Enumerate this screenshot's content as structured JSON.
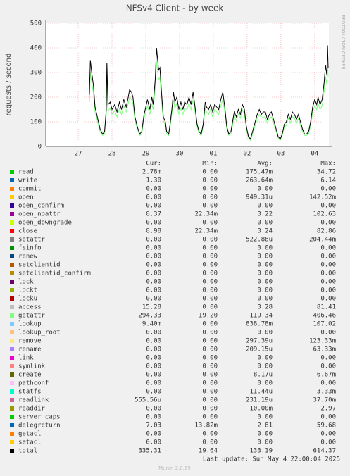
{
  "chart_data": {
    "type": "line",
    "title": "NFSv4 Client - by week",
    "y_label": "requests / second",
    "watermark": "RRDTOOL / TOBI OETIKER",
    "last_update": "Last update: Sun May  4 22:00:04 2025",
    "version": "Munin 2.0.69",
    "columns": [
      "Cur:",
      "Min:",
      "Avg:",
      "Max:"
    ],
    "ylim": [
      0,
      500
    ],
    "yticks": [
      0,
      100,
      200,
      300,
      400,
      500
    ],
    "xlim": [
      26.04,
      34.42
    ],
    "xticks": [
      27,
      28,
      29,
      30,
      {
        "value": 31,
        "label": "01"
      },
      {
        "value": 32,
        "label": "02"
      },
      {
        "value": 33,
        "label": "03"
      },
      {
        "value": 34,
        "label": "04"
      }
    ],
    "grid": true,
    "x": [
      27.33,
      27.36,
      27.4,
      27.45,
      27.5,
      27.55,
      27.6,
      27.65,
      27.72,
      27.78,
      27.83,
      27.85,
      27.88,
      27.95,
      28.0,
      28.08,
      28.15,
      28.22,
      28.28,
      28.35,
      28.42,
      28.48,
      28.52,
      28.58,
      28.62,
      28.68,
      28.75,
      28.82,
      28.88,
      28.95,
      29.0,
      29.05,
      29.12,
      29.18,
      29.22,
      29.28,
      29.32,
      29.38,
      29.42,
      29.46,
      29.52,
      29.58,
      29.62,
      29.68,
      29.72,
      29.78,
      29.82,
      29.86,
      29.92,
      29.98,
      30.04,
      30.1,
      30.15,
      30.22,
      30.28,
      30.34,
      30.4,
      30.46,
      30.52,
      30.58,
      30.64,
      30.7,
      30.76,
      30.8,
      30.86,
      30.92,
      30.98,
      31.04,
      31.1,
      31.16,
      31.22,
      31.28,
      31.34,
      31.4,
      31.46,
      31.52,
      31.58,
      31.62,
      31.68,
      31.74,
      31.8,
      31.86,
      31.92,
      31.98,
      32.04,
      32.1,
      32.16,
      32.24,
      32.3,
      32.36,
      32.42,
      32.48,
      32.54,
      32.6,
      32.66,
      32.72,
      32.8,
      32.86,
      32.92,
      32.98,
      33.04,
      33.1,
      33.16,
      33.22,
      33.28,
      33.34,
      33.4,
      33.46,
      33.52,
      33.58,
      33.64,
      33.7,
      33.76,
      33.82,
      33.88,
      33.94,
      34.0,
      34.06,
      34.1,
      34.16,
      34.22,
      34.28,
      34.32,
      34.36,
      34.38,
      34.4
    ],
    "series": [
      {
        "name": "read",
        "color": "#00cc00",
        "cur": "2.78m",
        "min": "0.00",
        "avg": "175.47m",
        "max": "34.72"
      },
      {
        "name": "write",
        "color": "#0066b3",
        "cur": "1.30",
        "min": "0.00",
        "avg": "263.64m",
        "max": "6.14"
      },
      {
        "name": "commit",
        "color": "#ff8000",
        "cur": "0.00",
        "min": "0.00",
        "avg": "0.00",
        "max": "0.00"
      },
      {
        "name": "open",
        "color": "#ffcc00",
        "cur": "0.00",
        "min": "0.00",
        "avg": "949.31u",
        "max": "142.52m"
      },
      {
        "name": "open_confirm",
        "color": "#330099",
        "cur": "0.00",
        "min": "0.00",
        "avg": "0.00",
        "max": "0.00"
      },
      {
        "name": "open_noattr",
        "color": "#990099",
        "cur": "8.37",
        "min": "22.34m",
        "avg": "3.22",
        "max": "102.63"
      },
      {
        "name": "open_downgrade",
        "color": "#ccff00",
        "cur": "0.00",
        "min": "0.00",
        "avg": "0.00",
        "max": "0.00"
      },
      {
        "name": "close",
        "color": "#ff0000",
        "cur": "8.98",
        "min": "22.34m",
        "avg": "3.24",
        "max": "82.86"
      },
      {
        "name": "setattr",
        "color": "#808080",
        "cur": "0.00",
        "min": "0.00",
        "avg": "522.88u",
        "max": "204.44m"
      },
      {
        "name": "fsinfo",
        "color": "#008f00",
        "cur": "0.00",
        "min": "0.00",
        "avg": "0.00",
        "max": "0.00"
      },
      {
        "name": "renew",
        "color": "#00487d",
        "cur": "0.00",
        "min": "0.00",
        "avg": "0.00",
        "max": "0.00"
      },
      {
        "name": "setclientid",
        "color": "#b35a00",
        "cur": "0.00",
        "min": "0.00",
        "avg": "0.00",
        "max": "0.00"
      },
      {
        "name": "setclientid_confirm",
        "color": "#b38f00",
        "cur": "0.00",
        "min": "0.00",
        "avg": "0.00",
        "max": "0.00"
      },
      {
        "name": "lock",
        "color": "#6b006b",
        "cur": "0.00",
        "min": "0.00",
        "avg": "0.00",
        "max": "0.00"
      },
      {
        "name": "lockt",
        "color": "#8fb300",
        "cur": "0.00",
        "min": "0.00",
        "avg": "0.00",
        "max": "0.00"
      },
      {
        "name": "locku",
        "color": "#b30000",
        "cur": "0.00",
        "min": "0.00",
        "avg": "0.00",
        "max": "0.00"
      },
      {
        "name": "access",
        "color": "#bebebe",
        "cur": "15.28",
        "min": "0.00",
        "avg": "3.28",
        "max": "81.41"
      },
      {
        "name": "getattr",
        "color": "#80ff80",
        "cur": "294.33",
        "min": "19.20",
        "avg": "119.34",
        "max": "406.46",
        "values": [
          180,
          300,
          260,
          215,
          140,
          115,
          85,
          60,
          45,
          50,
          130,
          290,
          145,
          155,
          130,
          145,
          120,
          155,
          130,
          165,
          140,
          175,
          200,
          190,
          175,
          105,
          70,
          45,
          50,
          115,
          140,
          165,
          130,
          175,
          150,
          235,
          345,
          270,
          280,
          200,
          105,
          85,
          50,
          45,
          80,
          140,
          190,
          155,
          175,
          130,
          155,
          130,
          155,
          150,
          175,
          150,
          190,
          140,
          80,
          50,
          45,
          80,
          155,
          140,
          130,
          150,
          120,
          150,
          140,
          130,
          165,
          190,
          140,
          70,
          45,
          50,
          95,
          120,
          105,
          130,
          115,
          150,
          130,
          70,
          35,
          25,
          50,
          85,
          115,
          130,
          115,
          120,
          120,
          95,
          115,
          120,
          85,
          60,
          35,
          25,
          45,
          80,
          85,
          115,
          95,
          120,
          115,
          95,
          115,
          85,
          60,
          45,
          45,
          50,
          85,
          140,
          165,
          150,
          175,
          150,
          165,
          225,
          285,
          250,
          355,
          280
        ]
      },
      {
        "name": "lookup",
        "color": "#80c9ff",
        "cur": "9.40m",
        "min": "0.00",
        "avg": "838.78m",
        "max": "107.02"
      },
      {
        "name": "lookup_root",
        "color": "#ffc080",
        "cur": "0.00",
        "min": "0.00",
        "avg": "0.00",
        "max": "0.00"
      },
      {
        "name": "remove",
        "color": "#ffe680",
        "cur": "0.00",
        "min": "0.00",
        "avg": "297.39u",
        "max": "123.33m"
      },
      {
        "name": "rename",
        "color": "#aa80ff",
        "cur": "0.00",
        "min": "0.00",
        "avg": "209.15u",
        "max": "63.33m"
      },
      {
        "name": "link",
        "color": "#ee00cc",
        "cur": "0.00",
        "min": "0.00",
        "avg": "0.00",
        "max": "0.00"
      },
      {
        "name": "symlink",
        "color": "#ff8080",
        "cur": "0.00",
        "min": "0.00",
        "avg": "0.00",
        "max": "0.00"
      },
      {
        "name": "create",
        "color": "#666600",
        "cur": "0.00",
        "min": "0.00",
        "avg": "8.17u",
        "max": "6.67m"
      },
      {
        "name": "pathconf",
        "color": "#ffbfff",
        "cur": "0.00",
        "min": "0.00",
        "avg": "0.00",
        "max": "0.00"
      },
      {
        "name": "statfs",
        "color": "#00ffcc",
        "cur": "0.00",
        "min": "0.00",
        "avg": "11.44u",
        "max": "3.33m"
      },
      {
        "name": "readlink",
        "color": "#cc6699",
        "cur": "555.56u",
        "min": "0.00",
        "avg": "231.19u",
        "max": "37.70m"
      },
      {
        "name": "readdir",
        "color": "#999900",
        "cur": "0.00",
        "min": "0.00",
        "avg": "10.00m",
        "max": "2.97"
      },
      {
        "name": "server_caps",
        "color": "#00cc00",
        "cur": "0.00",
        "min": "0.00",
        "avg": "0.00",
        "max": "0.00"
      },
      {
        "name": "delegreturn",
        "color": "#0066b3",
        "cur": "7.03",
        "min": "13.82m",
        "avg": "2.81",
        "max": "59.68"
      },
      {
        "name": "getacl",
        "color": "#ff8000",
        "cur": "0.00",
        "min": "0.00",
        "avg": "0.00",
        "max": "0.00"
      },
      {
        "name": "setacl",
        "color": "#ffcc00",
        "cur": "0.00",
        "min": "0.00",
        "avg": "0.00",
        "max": "0.00"
      },
      {
        "name": "total",
        "color": "#000000",
        "cur": "335.31",
        "min": "19.64",
        "avg": "133.19",
        "max": "614.37",
        "values": [
          210,
          350,
          300,
          250,
          160,
          130,
          100,
          70,
          50,
          60,
          150,
          340,
          170,
          180,
          150,
          170,
          140,
          180,
          150,
          190,
          160,
          200,
          230,
          220,
          200,
          120,
          80,
          50,
          60,
          130,
          160,
          190,
          150,
          200,
          170,
          270,
          400,
          310,
          320,
          230,
          120,
          100,
          60,
          50,
          90,
          160,
          220,
          180,
          200,
          150,
          180,
          150,
          180,
          170,
          200,
          170,
          220,
          160,
          90,
          60,
          50,
          90,
          180,
          160,
          150,
          170,
          140,
          170,
          160,
          150,
          190,
          220,
          160,
          80,
          50,
          60,
          110,
          140,
          120,
          150,
          130,
          170,
          150,
          80,
          40,
          30,
          60,
          100,
          130,
          150,
          130,
          140,
          140,
          110,
          130,
          140,
          100,
          70,
          40,
          30,
          50,
          90,
          100,
          130,
          110,
          140,
          130,
          110,
          130,
          100,
          70,
          50,
          50,
          60,
          100,
          160,
          190,
          170,
          200,
          170,
          190,
          260,
          330,
          290,
          410,
          320
        ]
      }
    ]
  }
}
